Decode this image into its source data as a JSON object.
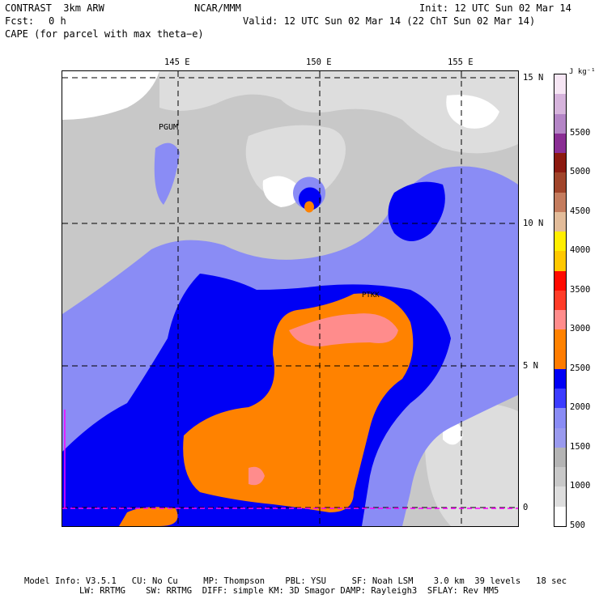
{
  "header": {
    "model": "CONTRAST  3km ARW",
    "org": "NCAR/MMM",
    "init": "Init: 12 UTC Sun 02 Mar 14",
    "fcst_label": "Fcst:",
    "fcst_value": "0 h",
    "valid": "Valid: 12 UTC Sun 02 Mar 14 (22 ChT Sun 02 Mar 14)",
    "field": "CAPE (for parcel with max theta−e)"
  },
  "axes": {
    "lon_labels": [
      "145 E",
      "150 E",
      "155 E"
    ],
    "lat_labels": [
      "15 N",
      "10 N",
      "5 N",
      "0"
    ]
  },
  "stations": [
    "PGUM",
    "PTKK"
  ],
  "colorbar": {
    "unit": "J kg⁻¹",
    "labels": [
      "5500",
      "5000",
      "4500",
      "4000",
      "3500",
      "3000",
      "2500",
      "2000",
      "1500",
      "1000",
      "500"
    ],
    "colors": [
      "#f6e6f4",
      "#d6b4dc",
      "#b485c6",
      "#8a2e94",
      "#8c1a10",
      "#a0442a",
      "#c47c5e",
      "#e2bc9a",
      "#ffee00",
      "#ffc800",
      "#ff0a00",
      "#ff3c28",
      "#ff8c8c",
      "#ff8200",
      "#ff7c00",
      "#0000f5",
      "#3c3cff",
      "#8a8cf5",
      "#9a9aee",
      "#b4b4b4",
      "#c8c8c8",
      "#dddddd",
      "#ffffff"
    ]
  },
  "footer": {
    "line1": "Model Info: V3.5.1   CU: No Cu     MP: Thompson    PBL: YSU     SF: Noah LSM    3.0 km  39 levels   18 sec",
    "line2": "LW: RRTMG    SW: RRTMG  DIFF: simple KM: 3D Smagor DAMP: Rayleigh3  SFLAY: Rev MM5"
  }
}
